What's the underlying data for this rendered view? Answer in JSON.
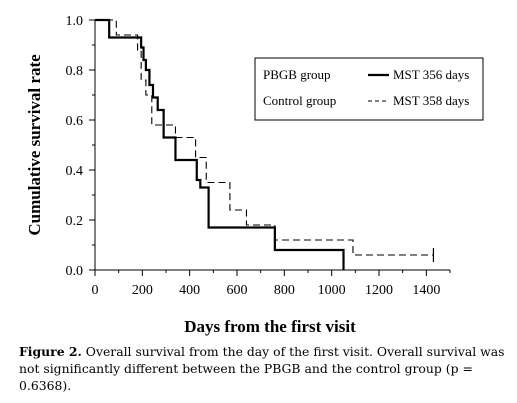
{
  "chart_data": {
    "type": "line",
    "step": true,
    "xlabel": "Days from the first visit",
    "ylabel": "Cumulative survival rate",
    "xlim": [
      0,
      1500
    ],
    "ylim": [
      0.0,
      1.0
    ],
    "xticks": [
      0,
      200,
      400,
      600,
      800,
      1000,
      1200,
      1400
    ],
    "yticks": [
      "0.0",
      "0.2",
      "0.4",
      "0.6",
      "0.8",
      "1.0"
    ],
    "grid": false,
    "legend_placement": "top-right",
    "series": [
      {
        "name": "PBGB group",
        "legend_value": "MST 356 days",
        "style": "solid",
        "x": [
          0,
          60,
          195,
          205,
          215,
          230,
          245,
          265,
          290,
          340,
          430,
          445,
          480,
          760,
          1050
        ],
        "y": [
          1.0,
          0.93,
          0.89,
          0.84,
          0.8,
          0.74,
          0.69,
          0.64,
          0.53,
          0.44,
          0.36,
          0.33,
          0.17,
          0.08,
          0.0
        ]
      },
      {
        "name": "Control group",
        "legend_value": "MST 358 days",
        "style": "dashed",
        "x": [
          0,
          85,
          90,
          180,
          195,
          215,
          240,
          300,
          340,
          425,
          470,
          530,
          570,
          640,
          760,
          1090,
          1430
        ],
        "y": [
          1.0,
          1.0,
          0.94,
          0.88,
          0.76,
          0.7,
          0.58,
          0.58,
          0.53,
          0.45,
          0.35,
          0.35,
          0.24,
          0.18,
          0.12,
          0.06,
          0.06
        ]
      }
    ]
  },
  "caption": {
    "label": "Figure 2.",
    "text": " Overall survival from the day of the first visit. Overall survival was not significantly different between the PBGB and the control group (p = 0.6368)."
  }
}
